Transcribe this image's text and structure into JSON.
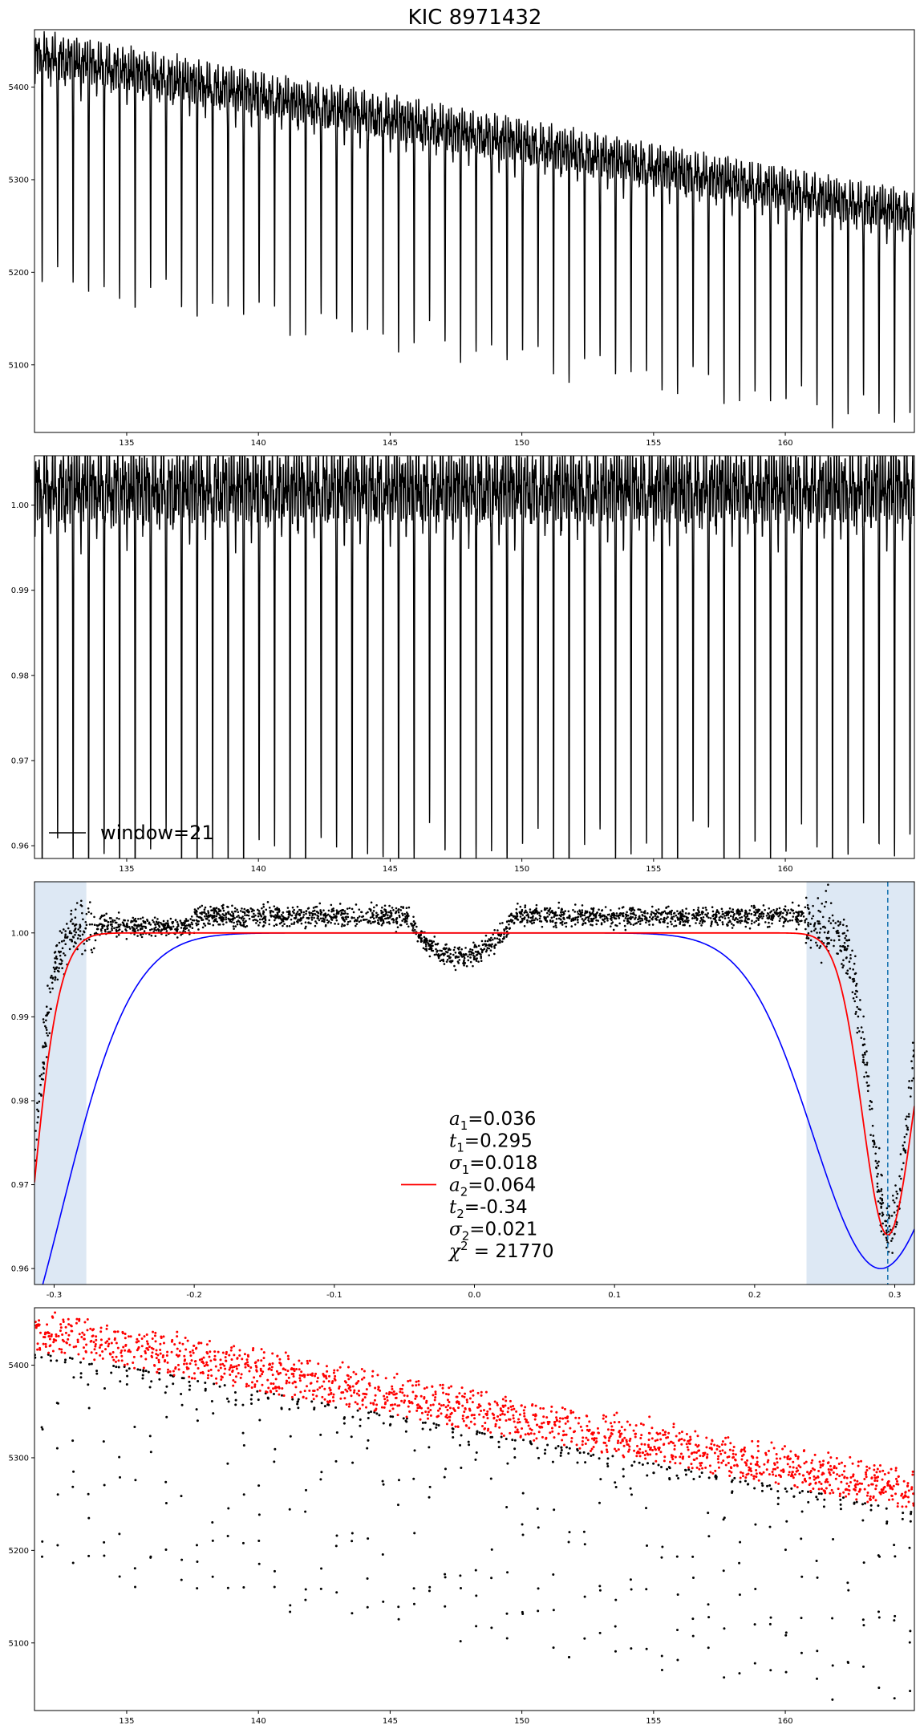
{
  "title": "KIC 8971432",
  "colors": {
    "black": "#000000",
    "red": "#ff0000",
    "blue": "#0000ff",
    "shade": "#dde8f4",
    "dashed": "#1f77b4"
  },
  "chart_data": [
    {
      "id": "raw-flux",
      "type": "line",
      "xlim": [
        131.5,
        164.9
      ],
      "ylim": [
        5027,
        5462
      ],
      "xticks": [
        135,
        140,
        145,
        150,
        155,
        160
      ],
      "yticks": [
        5100,
        5200,
        5300,
        5400
      ],
      "grid": false,
      "model": {
        "period": 0.5883,
        "first_dip": 131.79,
        "baseline_start": 5438,
        "baseline_end": 5265,
        "primary_depth": [
          245,
          225
        ],
        "secondary_depth": 56,
        "sigma": 0.012
      }
    },
    {
      "id": "normalized-flux",
      "type": "line",
      "xlim": [
        131.5,
        164.9
      ],
      "ylim": [
        0.9585,
        1.0058
      ],
      "xticks": [
        135,
        140,
        145,
        150,
        155,
        160
      ],
      "yticks": [
        0.96,
        0.97,
        0.98,
        0.99,
        1.0
      ],
      "ytick_labels": [
        "0.96",
        "0.97",
        "0.98",
        "0.99",
        "1.00"
      ],
      "grid": false,
      "legend": {
        "location": "lower left",
        "entries": [
          {
            "label": "window=21",
            "color": "#000000"
          }
        ]
      }
    },
    {
      "id": "phase-fold",
      "type": "scatter",
      "xlim": [
        -0.314,
        0.314
      ],
      "ylim": [
        0.9581,
        1.0061
      ],
      "xticks": [
        -0.3,
        -0.2,
        -0.1,
        0.0,
        0.1,
        0.2,
        0.3
      ],
      "xtick_labels": [
        "-0.3",
        "-0.2",
        "-0.1",
        "0.0",
        "0.1",
        "0.2",
        "0.3"
      ],
      "yticks": [
        0.96,
        0.97,
        0.98,
        0.99,
        1.0
      ],
      "ytick_labels": [
        "0.96",
        "0.97",
        "0.98",
        "0.99",
        "1.00"
      ],
      "grid": false,
      "shaded_regions": [
        [
          -0.314,
          -0.277
        ],
        [
          0.237,
          0.314
        ]
      ],
      "vline": 0.295,
      "fit_red": {
        "a1": 0.036,
        "t1": 0.295,
        "sigma1": 0.018,
        "a2": 0.064,
        "t2": -0.34,
        "sigma2": 0.021
      },
      "fit_blue": {
        "amplitude": 0.04,
        "center": 0.29,
        "sigma": 0.048
      },
      "secondary_dip": {
        "center": -0.01,
        "depth": 0.0048,
        "halfwidth": 0.036
      },
      "legend": {
        "location": "lower center",
        "color": "#ff0000",
        "entries": [
          {
            "symbol": "a",
            "sub": "1",
            "value": "=0.036"
          },
          {
            "symbol": "t",
            "sub": "1",
            "value": "=0.295"
          },
          {
            "symbol": "σ",
            "sub": "1",
            "value": "=0.018"
          },
          {
            "symbol": "a",
            "sub": "2",
            "value": "=0.064"
          },
          {
            "symbol": "t",
            "sub": "2",
            "value": "=-0.34"
          },
          {
            "symbol": "σ",
            "sub": "2",
            "value": "=0.021"
          },
          {
            "symbol": "χ",
            "sup": "2",
            "value": " = 21770"
          }
        ]
      }
    },
    {
      "id": "flux-scatter",
      "type": "scatter",
      "xlim": [
        131.5,
        164.9
      ],
      "ylim": [
        5027,
        5462
      ],
      "xticks": [
        135,
        140,
        145,
        150,
        155,
        160
      ],
      "yticks": [
        5100,
        5200,
        5300,
        5400
      ],
      "grid": false,
      "series": [
        {
          "color": "#000000"
        },
        {
          "color": "#ff0000"
        }
      ]
    }
  ]
}
